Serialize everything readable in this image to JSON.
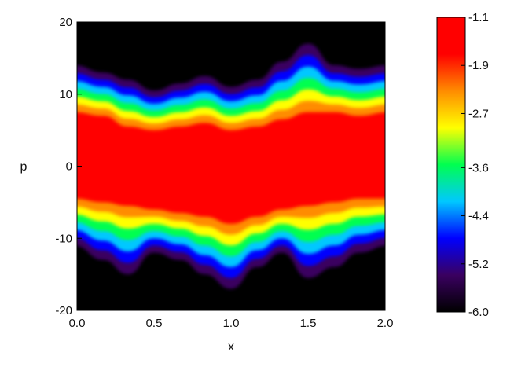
{
  "chart_data": {
    "type": "heatmap",
    "title": "",
    "xlabel": "x",
    "ylabel": "p",
    "xlim": [
      0.0,
      2.0
    ],
    "ylim": [
      -20,
      20
    ],
    "x_ticks": [
      0.0,
      0.5,
      1.0,
      1.5,
      2.0
    ],
    "x_tick_labels": [
      "0.0",
      "0.5",
      "1.0",
      "1.5",
      "2.0"
    ],
    "y_ticks": [
      -20,
      -10,
      0,
      10,
      20
    ],
    "y_tick_labels": [
      "-20",
      "-10",
      "0",
      "10",
      "20"
    ],
    "colorbar": {
      "range": [
        -6.0,
        -1.1
      ],
      "tick_values": [
        -1.1,
        -1.9,
        -2.7,
        -3.6,
        -4.4,
        -5.2,
        -6.0
      ],
      "tick_labels": [
        "-1.1",
        "-1.9",
        "-2.7",
        "-3.6",
        "-4.4",
        "-5.2",
        "-6.0"
      ],
      "colormap": [
        "#000000",
        "#3a0060",
        "#0000ff",
        "#00c8ff",
        "#00ff50",
        "#ffff00",
        "#ff8c00",
        "#ff0000",
        "#ff0000"
      ]
    },
    "background_color": "#000000",
    "upper_boundary_p": [
      14,
      13,
      12,
      10.5,
      11.5,
      12.5,
      11,
      12,
      14.5,
      17,
      14,
      13.5,
      14
    ],
    "lower_boundary_p": [
      -11,
      -13,
      -15,
      -12,
      -13,
      -15,
      -17,
      -14,
      -12,
      -15.5,
      -14,
      -12,
      -11
    ],
    "upper_core_p": [
      7.5,
      7,
      5.5,
      5,
      5.5,
      6,
      5,
      5.5,
      6.5,
      7.5,
      7.5,
      7,
      7.5
    ],
    "lower_core_p": [
      -4.5,
      -5,
      -5.5,
      -6,
      -6.5,
      -7,
      -8,
      -7,
      -6,
      -5.5,
      -5,
      -4.5,
      -4.5
    ],
    "boundary_x": [
      0.0,
      0.17,
      0.33,
      0.5,
      0.67,
      0.83,
      1.0,
      1.17,
      1.33,
      1.5,
      1.67,
      1.83,
      2.0
    ]
  }
}
